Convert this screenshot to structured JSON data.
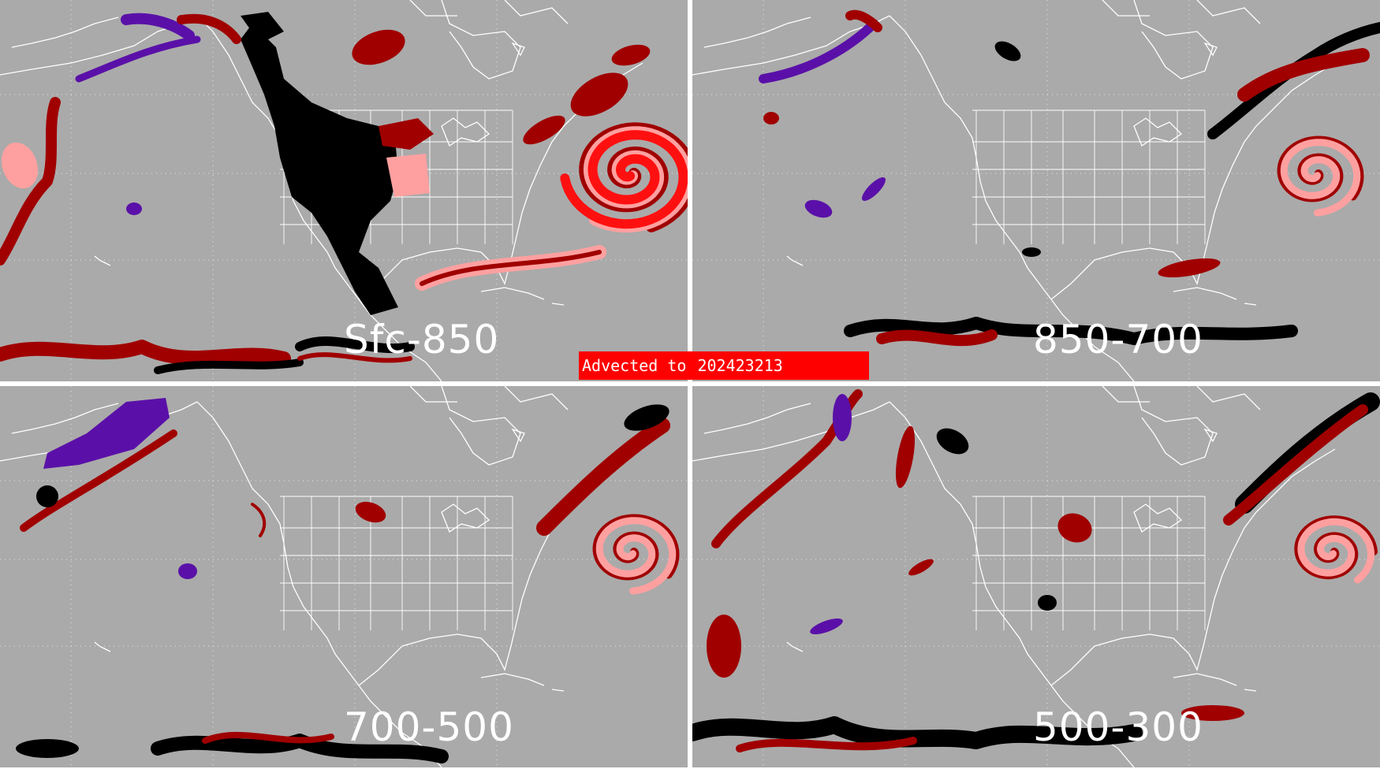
{
  "colors": {
    "background": "#aaaaaa",
    "outline": "#ffffff",
    "grid": "#ffffff",
    "purple": "#5a10a8",
    "darkred": "#a00000",
    "pink": "#ffa0a0",
    "red": "#ff1010",
    "black": "#000000",
    "banner": "#ff0000"
  },
  "banner": {
    "prefix": "Advected to",
    "date": "202423213"
  },
  "panels": [
    {
      "label": "Sfc-850"
    },
    {
      "label": "850-700"
    },
    {
      "label": "700-500"
    },
    {
      "label": "500-300"
    }
  ]
}
